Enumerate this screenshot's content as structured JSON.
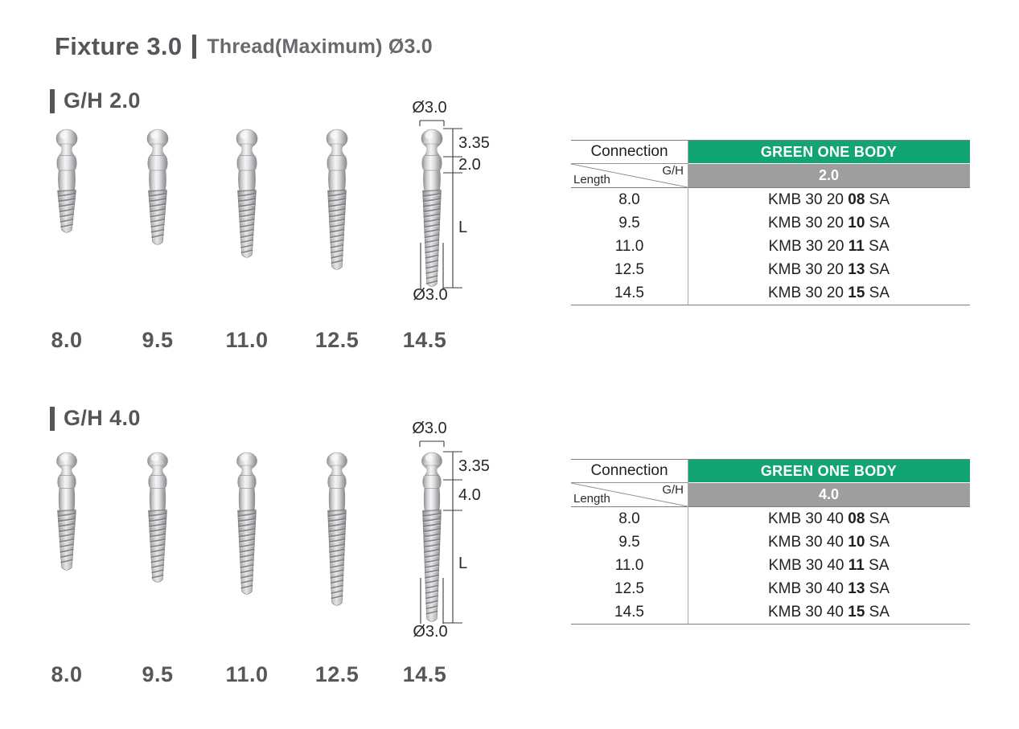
{
  "title": {
    "product": "Fixture 3.0",
    "spec": "Thread(Maximum) Ø3.0"
  },
  "colors": {
    "green": "#11a573",
    "gray_band": "#9e9ea0",
    "heading_gray": "#54565a"
  },
  "sections": [
    {
      "heading": "G/H 2.0",
      "lengths": [
        "8.0",
        "9.5",
        "11.0",
        "12.5",
        "14.5"
      ],
      "diagram": {
        "top_diameter": "Ø3.0",
        "head_height": "3.35",
        "gingival_height": "2.0",
        "length_symbol": "L",
        "bottom_diameter": "Ø3.0"
      },
      "table": {
        "connection_label": "Connection",
        "brand": "GREEN ONE BODY",
        "corner_gh": "G/H",
        "corner_length": "Length",
        "gh_value": "2.0",
        "rows": [
          {
            "length": "8.0",
            "prefix": "KMB 30 20",
            "bold": "08",
            "suffix": "SA"
          },
          {
            "length": "9.5",
            "prefix": "KMB 30 20",
            "bold": "10",
            "suffix": "SA"
          },
          {
            "length": "11.0",
            "prefix": "KMB 30 20",
            "bold": "11",
            "suffix": "SA"
          },
          {
            "length": "12.5",
            "prefix": "KMB 30 20",
            "bold": "13",
            "suffix": "SA"
          },
          {
            "length": "14.5",
            "prefix": "KMB 30 20",
            "bold": "15",
            "suffix": "SA"
          }
        ]
      }
    },
    {
      "heading": "G/H 4.0",
      "lengths": [
        "8.0",
        "9.5",
        "11.0",
        "12.5",
        "14.5"
      ],
      "diagram": {
        "top_diameter": "Ø3.0",
        "head_height": "3.35",
        "gingival_height": "4.0",
        "length_symbol": "L",
        "bottom_diameter": "Ø3.0"
      },
      "table": {
        "connection_label": "Connection",
        "brand": "GREEN ONE BODY",
        "corner_gh": "G/H",
        "corner_length": "Length",
        "gh_value": "4.0",
        "rows": [
          {
            "length": "8.0",
            "prefix": "KMB 30 40",
            "bold": "08",
            "suffix": "SA"
          },
          {
            "length": "9.5",
            "prefix": "KMB 30 40",
            "bold": "10",
            "suffix": "SA"
          },
          {
            "length": "11.0",
            "prefix": "KMB 30 40",
            "bold": "11",
            "suffix": "SA"
          },
          {
            "length": "12.5",
            "prefix": "KMB 30 40",
            "bold": "13",
            "suffix": "SA"
          },
          {
            "length": "14.5",
            "prefix": "KMB 30 40",
            "bold": "15",
            "suffix": "SA"
          }
        ]
      }
    }
  ]
}
